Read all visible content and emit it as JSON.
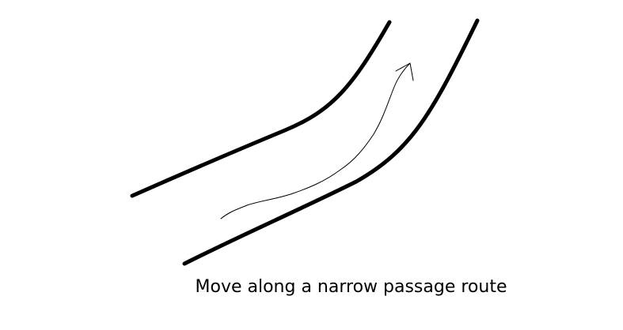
{
  "caption": "Move along a narrow passage route",
  "colors": {
    "background": "#ffffff",
    "ink": "#000000"
  },
  "icons": {
    "route_arrow": "arrow-head-icon"
  }
}
